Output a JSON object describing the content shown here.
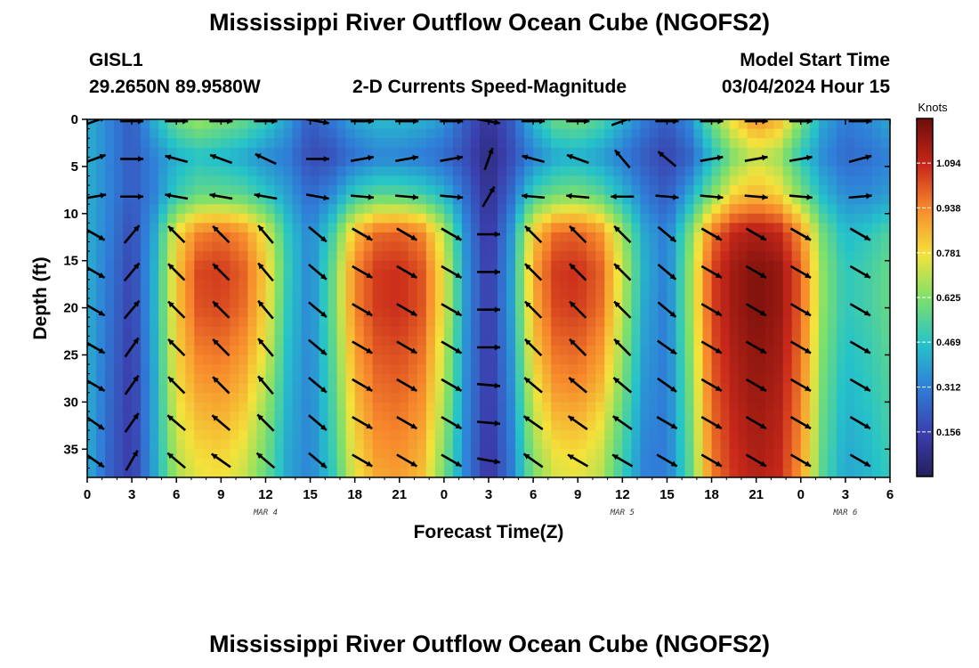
{
  "titles": {
    "main": "Mississippi River Outflow Ocean Cube (NGOFS2)",
    "station_id": "GISL1",
    "station_coords": "29.2650N  89.9580W",
    "plot_title": "2-D Currents Speed-Magnitude",
    "model_start_label": "Model Start Time",
    "model_start_value": "03/04/2024 Hour 15",
    "second_main": "Mississippi River Outflow Ocean Cube (NGOFS2)"
  },
  "chart_data": {
    "type": "heatmap",
    "xlabel": "Forecast Time(Z)",
    "ylabel": "Depth (ft)",
    "x_range_hours": [
      0,
      54
    ],
    "y_range_ft": [
      0,
      38
    ],
    "y_inverted": true,
    "x_ticks": [
      {
        "hour": 0,
        "label": "0"
      },
      {
        "hour": 3,
        "label": "3"
      },
      {
        "hour": 6,
        "label": "6"
      },
      {
        "hour": 9,
        "label": "9"
      },
      {
        "hour": 12,
        "label": "12"
      },
      {
        "hour": 15,
        "label": "15"
      },
      {
        "hour": 18,
        "label": "18"
      },
      {
        "hour": 21,
        "label": "21"
      },
      {
        "hour": 24,
        "label": "0"
      },
      {
        "hour": 27,
        "label": "3"
      },
      {
        "hour": 30,
        "label": "6"
      },
      {
        "hour": 33,
        "label": "9"
      },
      {
        "hour": 36,
        "label": "12"
      },
      {
        "hour": 39,
        "label": "15"
      },
      {
        "hour": 42,
        "label": "18"
      },
      {
        "hour": 45,
        "label": "21"
      },
      {
        "hour": 48,
        "label": "0"
      },
      {
        "hour": 51,
        "label": "3"
      },
      {
        "hour": 54,
        "label": "6"
      }
    ],
    "date_labels": [
      {
        "hour": 12,
        "label": "MAR 4"
      },
      {
        "hour": 36,
        "label": "MAR 5"
      },
      {
        "hour": 51,
        "label": "MAR 6"
      }
    ],
    "y_ticks": [
      0,
      5,
      10,
      15,
      20,
      25,
      30,
      35
    ],
    "colorbar": {
      "unit": "Knots",
      "min": 0.0,
      "max": 1.25,
      "tick_values": [
        0.156,
        0.312,
        0.469,
        0.625,
        0.781,
        0.938,
        1.094
      ],
      "tick_labels": [
        "0.156",
        "0.312",
        "0.469",
        "0.625",
        "0.781",
        "0.938",
        "1.094"
      ],
      "colormap": "jet"
    },
    "time_hours": [
      0,
      1.5,
      3,
      4.5,
      6,
      7.5,
      9,
      10.5,
      12,
      13.5,
      15,
      16.5,
      18,
      19.5,
      21,
      22.5,
      24,
      25.5,
      27,
      28.5,
      30,
      31.5,
      33,
      34.5,
      36,
      37.5,
      39,
      40.5,
      42,
      43.5,
      45,
      46.5,
      48,
      49.5,
      51,
      52.5,
      54
    ],
    "depth_ft": [
      0,
      4,
      8,
      12,
      16,
      20,
      24,
      28,
      32,
      36,
      38
    ],
    "speed_knots": [
      [
        0.42,
        0.42,
        0.42,
        0.42,
        0.42,
        0.42,
        0.42,
        0.42,
        0.42,
        0.42,
        0.42
      ],
      [
        0.32,
        0.32,
        0.32,
        0.31,
        0.29,
        0.28,
        0.27,
        0.26,
        0.25,
        0.24,
        0.24
      ],
      [
        0.22,
        0.22,
        0.22,
        0.18,
        0.16,
        0.15,
        0.14,
        0.13,
        0.13,
        0.13,
        0.13
      ],
      [
        0.42,
        0.32,
        0.32,
        0.4,
        0.42,
        0.42,
        0.41,
        0.4,
        0.4,
        0.39,
        0.39
      ],
      [
        0.6,
        0.42,
        0.5,
        0.78,
        0.82,
        0.82,
        0.8,
        0.78,
        0.74,
        0.7,
        0.68
      ],
      [
        0.66,
        0.46,
        0.58,
        0.94,
        1.04,
        1.02,
        0.96,
        0.9,
        0.84,
        0.78,
        0.76
      ],
      [
        0.62,
        0.44,
        0.58,
        0.98,
        1.06,
        1.04,
        0.98,
        0.92,
        0.86,
        0.8,
        0.78
      ],
      [
        0.58,
        0.4,
        0.56,
        0.92,
        1.0,
        0.98,
        0.92,
        0.86,
        0.8,
        0.74,
        0.72
      ],
      [
        0.5,
        0.34,
        0.48,
        0.76,
        0.82,
        0.8,
        0.76,
        0.7,
        0.64,
        0.6,
        0.58
      ],
      [
        0.38,
        0.3,
        0.38,
        0.48,
        0.5,
        0.48,
        0.46,
        0.44,
        0.42,
        0.4,
        0.4
      ],
      [
        0.22,
        0.18,
        0.26,
        0.32,
        0.32,
        0.32,
        0.32,
        0.32,
        0.32,
        0.32,
        0.32
      ],
      [
        0.3,
        0.2,
        0.34,
        0.52,
        0.58,
        0.58,
        0.56,
        0.54,
        0.52,
        0.5,
        0.48
      ],
      [
        0.4,
        0.28,
        0.5,
        0.84,
        0.94,
        0.94,
        0.9,
        0.86,
        0.82,
        0.78,
        0.76
      ],
      [
        0.44,
        0.32,
        0.56,
        0.98,
        1.06,
        1.06,
        1.02,
        0.98,
        0.94,
        0.9,
        0.88
      ],
      [
        0.44,
        0.32,
        0.56,
        1.0,
        1.08,
        1.08,
        1.04,
        1.0,
        0.96,
        0.92,
        0.9
      ],
      [
        0.42,
        0.3,
        0.52,
        0.94,
        1.02,
        1.02,
        0.98,
        0.94,
        0.9,
        0.86,
        0.84
      ],
      [
        0.36,
        0.26,
        0.44,
        0.7,
        0.76,
        0.76,
        0.72,
        0.7,
        0.66,
        0.62,
        0.6
      ],
      [
        0.22,
        0.18,
        0.26,
        0.34,
        0.36,
        0.36,
        0.35,
        0.34,
        0.33,
        0.32,
        0.32
      ],
      [
        0.1,
        0.06,
        0.08,
        0.1,
        0.12,
        0.12,
        0.12,
        0.12,
        0.11,
        0.1,
        0.1
      ],
      [
        0.22,
        0.18,
        0.26,
        0.36,
        0.38,
        0.38,
        0.36,
        0.34,
        0.32,
        0.3,
        0.3
      ],
      [
        0.44,
        0.32,
        0.52,
        0.82,
        0.88,
        0.86,
        0.82,
        0.76,
        0.7,
        0.64,
        0.62
      ],
      [
        0.58,
        0.4,
        0.6,
        0.98,
        1.06,
        1.04,
        0.98,
        0.92,
        0.84,
        0.76,
        0.74
      ],
      [
        0.6,
        0.42,
        0.62,
        1.0,
        1.08,
        1.06,
        1.0,
        0.94,
        0.86,
        0.78,
        0.76
      ],
      [
        0.54,
        0.38,
        0.56,
        0.92,
        1.0,
        0.98,
        0.92,
        0.86,
        0.78,
        0.72,
        0.7
      ],
      [
        0.42,
        0.3,
        0.44,
        0.66,
        0.72,
        0.7,
        0.66,
        0.62,
        0.56,
        0.52,
        0.5
      ],
      [
        0.3,
        0.22,
        0.3,
        0.4,
        0.42,
        0.4,
        0.38,
        0.36,
        0.34,
        0.32,
        0.32
      ],
      [
        0.22,
        0.16,
        0.22,
        0.3,
        0.3,
        0.3,
        0.3,
        0.3,
        0.3,
        0.3,
        0.3
      ],
      [
        0.34,
        0.24,
        0.4,
        0.6,
        0.64,
        0.64,
        0.62,
        0.6,
        0.58,
        0.56,
        0.55
      ],
      [
        0.6,
        0.44,
        0.62,
        0.96,
        1.04,
        1.04,
        1.02,
        1.0,
        0.98,
        0.96,
        0.95
      ],
      [
        0.8,
        0.62,
        0.8,
        1.1,
        1.16,
        1.16,
        1.14,
        1.12,
        1.1,
        1.08,
        1.07
      ],
      [
        0.92,
        0.72,
        0.86,
        1.14,
        1.22,
        1.22,
        1.2,
        1.18,
        1.16,
        1.14,
        1.13
      ],
      [
        0.86,
        0.66,
        0.8,
        1.1,
        1.18,
        1.18,
        1.16,
        1.14,
        1.12,
        1.1,
        1.09
      ],
      [
        0.62,
        0.48,
        0.62,
        0.92,
        1.0,
        1.0,
        0.98,
        0.96,
        0.94,
        0.92,
        0.91
      ],
      [
        0.4,
        0.34,
        0.44,
        0.6,
        0.64,
        0.64,
        0.62,
        0.6,
        0.58,
        0.56,
        0.55
      ],
      [
        0.3,
        0.26,
        0.34,
        0.44,
        0.48,
        0.48,
        0.46,
        0.44,
        0.42,
        0.4,
        0.4
      ],
      [
        0.34,
        0.28,
        0.34,
        0.48,
        0.52,
        0.52,
        0.5,
        0.48,
        0.46,
        0.44,
        0.43
      ],
      [
        0.4,
        0.32,
        0.38,
        0.54,
        0.58,
        0.58,
        0.56,
        0.54,
        0.52,
        0.5,
        0.49
      ]
    ],
    "vectors": {
      "note_depths_ft": [
        0,
        4,
        8,
        12,
        16,
        20,
        24,
        28,
        32,
        36
      ],
      "columns": [
        {
          "hour": 0.5,
          "angles_deg": [
            20,
            20,
            10,
            -30,
            -30,
            -30,
            -30,
            -30,
            -35,
            -35
          ]
        },
        {
          "hour": 3,
          "angles_deg": [
            0,
            0,
            0,
            50,
            50,
            50,
            55,
            55,
            55,
            60
          ]
        },
        {
          "hour": 6,
          "angles_deg": [
            0,
            165,
            170,
            135,
            135,
            135,
            135,
            135,
            140,
            140
          ]
        },
        {
          "hour": 9,
          "angles_deg": [
            0,
            160,
            170,
            135,
            135,
            135,
            135,
            135,
            140,
            145
          ]
        },
        {
          "hour": 12,
          "angles_deg": [
            0,
            155,
            170,
            130,
            130,
            130,
            130,
            130,
            135,
            140
          ]
        },
        {
          "hour": 15.5,
          "angles_deg": [
            -10,
            0,
            -10,
            -40,
            -40,
            -40,
            -40,
            -40,
            -40,
            -40
          ]
        },
        {
          "hour": 18.5,
          "angles_deg": [
            0,
            10,
            -5,
            -30,
            -30,
            -30,
            -30,
            -30,
            -30,
            -30
          ]
        },
        {
          "hour": 21.5,
          "angles_deg": [
            0,
            10,
            -5,
            -30,
            -30,
            -30,
            -30,
            -30,
            -30,
            -30
          ]
        },
        {
          "hour": 24.5,
          "angles_deg": [
            0,
            10,
            -5,
            -30,
            -30,
            -30,
            -30,
            -30,
            -30,
            -30
          ]
        },
        {
          "hour": 27,
          "angles_deg": [
            -10,
            70,
            60,
            0,
            0,
            0,
            0,
            -5,
            -5,
            -10
          ]
        },
        {
          "hour": 30,
          "angles_deg": [
            0,
            165,
            175,
            135,
            135,
            135,
            135,
            140,
            145,
            145
          ]
        },
        {
          "hour": 33,
          "angles_deg": [
            0,
            160,
            175,
            135,
            135,
            135,
            135,
            140,
            145,
            150
          ]
        },
        {
          "hour": 36,
          "angles_deg": [
            20,
            130,
            180,
            135,
            135,
            135,
            135,
            140,
            145,
            150
          ]
        },
        {
          "hour": 39,
          "angles_deg": [
            0,
            140,
            -5,
            -40,
            -40,
            -40,
            -35,
            -35,
            -30,
            -30
          ]
        },
        {
          "hour": 42,
          "angles_deg": [
            0,
            10,
            -5,
            -30,
            -30,
            -30,
            -30,
            -30,
            -30,
            -30
          ]
        },
        {
          "hour": 45,
          "angles_deg": [
            0,
            10,
            -5,
            -30,
            -30,
            -30,
            -30,
            -30,
            -30,
            -30
          ]
        },
        {
          "hour": 48,
          "angles_deg": [
            0,
            10,
            -5,
            -30,
            -30,
            -30,
            -30,
            -30,
            -30,
            -30
          ]
        },
        {
          "hour": 52,
          "angles_deg": [
            0,
            15,
            5,
            -30,
            -30,
            -30,
            -30,
            -30,
            -30,
            -30
          ]
        }
      ]
    }
  }
}
